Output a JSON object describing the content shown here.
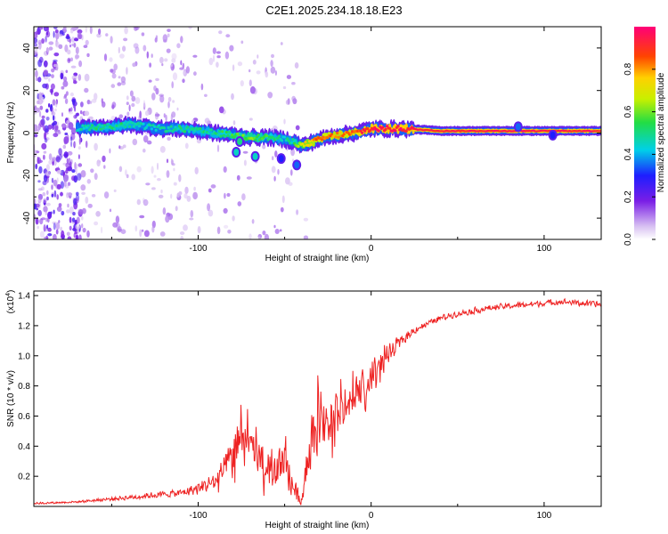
{
  "title": "C2E1.2025.234.18.18.E23",
  "chart_data": [
    {
      "type": "heatmap",
      "name": "spectrogram",
      "xlabel": "Height of straight line (km)",
      "ylabel": "Frequency (Hz)",
      "xlim": [
        -195,
        133
      ],
      "ylim": [
        -50,
        50
      ],
      "xticks": [
        -100,
        0,
        100
      ],
      "xtick_labels": [
        "-100",
        "0",
        "100"
      ],
      "yticks": [
        -40,
        -20,
        0,
        20,
        40
      ],
      "ytick_labels": [
        "-40",
        "-20",
        "0",
        "20",
        "40"
      ],
      "colorbar": {
        "label": "Normalized spectral amplitude",
        "range": [
          0,
          1
        ],
        "ticks": [
          0.0,
          0.2,
          0.4,
          0.6,
          0.8
        ],
        "tick_labels": [
          "0.0",
          "0.2",
          "0.4",
          "0.6",
          "0.8"
        ]
      },
      "ridge": {
        "x": [
          -170,
          -160,
          -150,
          -140,
          -130,
          -120,
          -110,
          -100,
          -90,
          -80,
          -70,
          -60,
          -50,
          -45,
          -40,
          -30,
          -20,
          -10,
          0,
          20,
          40,
          60,
          80,
          100,
          120,
          133
        ],
        "freq": [
          2,
          3,
          3,
          4,
          3,
          2,
          2,
          1,
          0,
          -1,
          -2,
          -2,
          -3,
          -4,
          -6,
          -3,
          -1,
          0,
          2,
          2,
          1,
          1,
          1,
          1,
          1,
          1
        ],
        "amplitude": [
          0.45,
          0.5,
          0.5,
          0.5,
          0.45,
          0.45,
          0.5,
          0.5,
          0.5,
          0.55,
          0.6,
          0.55,
          0.45,
          0.5,
          0.7,
          0.85,
          0.8,
          0.85,
          0.95,
          0.95,
          0.95,
          0.95,
          0.95,
          0.95,
          0.95,
          0.95
        ]
      },
      "blobs": [
        {
          "x": -78,
          "freq": -9,
          "amplitude": 0.45
        },
        {
          "x": -67,
          "freq": -11,
          "amplitude": 0.45
        },
        {
          "x": -52,
          "freq": -12,
          "amplitude": 0.3
        },
        {
          "x": -43,
          "freq": -15,
          "amplitude": 0.35
        },
        {
          "x": -76,
          "freq": -4,
          "amplitude": 0.5
        },
        {
          "x": 85,
          "freq": 3,
          "amplitude": 0.35
        },
        {
          "x": 105,
          "freq": -1,
          "amplitude": 0.3
        }
      ]
    },
    {
      "type": "line",
      "name": "snr",
      "xlabel": "Height of straight line (km)",
      "ylabel": "SNR (10 * v/v)",
      "scale_label": "(x10",
      "scale_exponent": "4",
      "color": "#ee2222",
      "xlim": [
        -195,
        133
      ],
      "ylim": [
        0.0,
        1.43
      ],
      "xticks": [
        -100,
        0,
        100
      ],
      "xtick_labels": [
        "-100",
        "0",
        "100"
      ],
      "yticks": [
        0.2,
        0.4,
        0.6,
        0.8,
        1.0,
        1.2,
        1.4
      ],
      "ytick_labels": [
        "0.2",
        "0.4",
        "0.6",
        "0.8",
        "1.0",
        "1.2",
        "1.4"
      ],
      "x": [
        -195,
        -170,
        -150,
        -130,
        -120,
        -110,
        -100,
        -90,
        -85,
        -80,
        -75,
        -70,
        -65,
        -60,
        -55,
        -50,
        -45,
        -40,
        -35,
        -30,
        -25,
        -20,
        -15,
        -10,
        -5,
        0,
        5,
        10,
        15,
        20,
        25,
        30,
        40,
        50,
        60,
        70,
        80,
        90,
        100,
        110,
        120,
        133
      ],
      "y": [
        0.02,
        0.03,
        0.05,
        0.07,
        0.08,
        0.09,
        0.12,
        0.17,
        0.24,
        0.34,
        0.45,
        0.38,
        0.3,
        0.26,
        0.24,
        0.3,
        0.12,
        0.04,
        0.45,
        0.6,
        0.55,
        0.62,
        0.65,
        0.72,
        0.78,
        0.85,
        0.93,
        1.0,
        1.07,
        1.12,
        1.17,
        1.2,
        1.25,
        1.28,
        1.3,
        1.32,
        1.33,
        1.34,
        1.35,
        1.36,
        1.35,
        1.34
      ],
      "noise": [
        0.01,
        0.01,
        0.02,
        0.03,
        0.03,
        0.04,
        0.06,
        0.1,
        0.15,
        0.2,
        0.25,
        0.2,
        0.18,
        0.18,
        0.17,
        0.2,
        0.1,
        0.05,
        0.25,
        0.3,
        0.3,
        0.25,
        0.22,
        0.2,
        0.17,
        0.15,
        0.12,
        0.1,
        0.07,
        0.05,
        0.04,
        0.03,
        0.03,
        0.03,
        0.03,
        0.03,
        0.03,
        0.03,
        0.03,
        0.03,
        0.03,
        0.03
      ]
    }
  ]
}
